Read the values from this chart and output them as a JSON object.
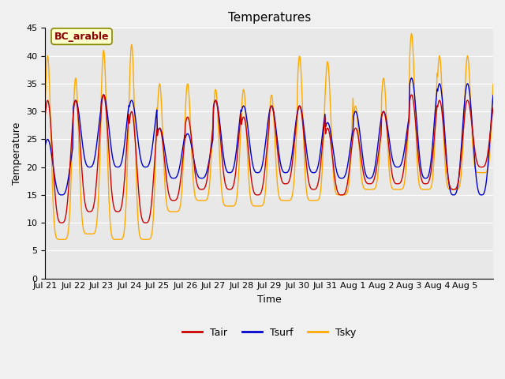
{
  "title": "Temperatures",
  "xlabel": "Time",
  "ylabel": "Temperature",
  "ylim": [
    0,
    45
  ],
  "yticks": [
    0,
    5,
    10,
    15,
    20,
    25,
    30,
    35,
    40,
    45
  ],
  "xtick_labels": [
    "Jul 21",
    "Jul 22",
    "Jul 23",
    "Jul 24",
    "Jul 25",
    "Jul 26",
    "Jul 27",
    "Jul 28",
    "Jul 29",
    "Jul 30",
    "Jul 31",
    "Aug 1",
    "Aug 2",
    "Aug 3",
    "Aug 4",
    "Aug 5"
  ],
  "n_days": 16,
  "n_points_per_day": 48,
  "tair_peaks": [
    32,
    32,
    33,
    30,
    27,
    29,
    32,
    29,
    31,
    31,
    27,
    27,
    30,
    33,
    32,
    32
  ],
  "tair_troughs": [
    10,
    12,
    12,
    10,
    14,
    16,
    16,
    15,
    17,
    16,
    15,
    17,
    17,
    17,
    16,
    20
  ],
  "tsurf_peaks": [
    25,
    32,
    33,
    32,
    27,
    26,
    32,
    31,
    31,
    31,
    28,
    30,
    30,
    36,
    35,
    35
  ],
  "tsurf_troughs": [
    15,
    20,
    20,
    20,
    18,
    18,
    19,
    19,
    19,
    19,
    18,
    18,
    20,
    18,
    15,
    15
  ],
  "tsky_peaks": [
    40,
    36,
    41,
    42,
    35,
    35,
    34,
    34,
    33,
    40,
    39,
    31,
    36,
    44,
    40,
    40
  ],
  "tsky_troughs": [
    7,
    8,
    7,
    7,
    12,
    14,
    13,
    13,
    14,
    14,
    15,
    16,
    16,
    16,
    16,
    19
  ],
  "color_tair": "#cc0000",
  "color_tsurf": "#0000cc",
  "color_tsky": "#ffaa00",
  "linewidth": 1.0,
  "bg_inner": "#e8e8e8",
  "bg_outer": "#f0f0f0",
  "annotation_text": "BC_arable",
  "annotation_color": "#8b0000",
  "annotation_bg": "#ffffcc",
  "title_fontsize": 11,
  "label_fontsize": 9,
  "tick_fontsize": 8,
  "legend_fontsize": 9
}
